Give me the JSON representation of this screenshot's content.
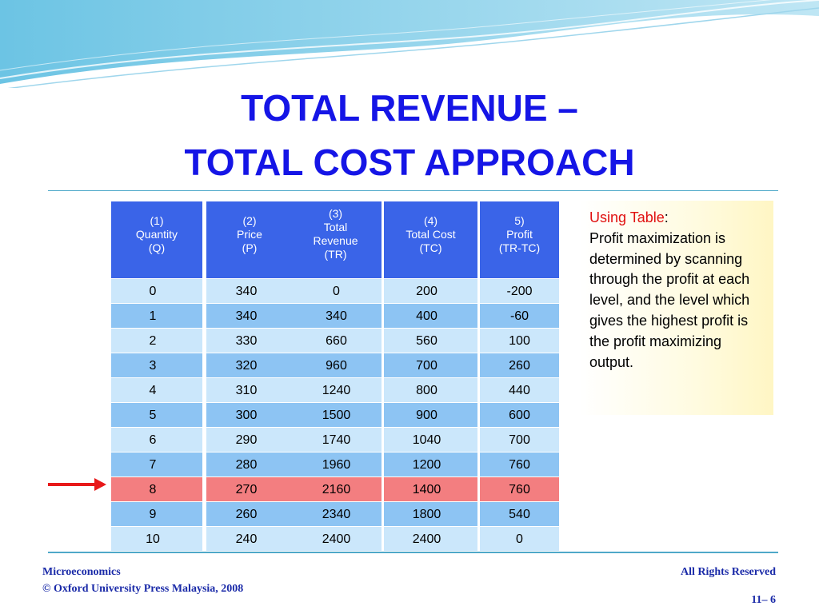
{
  "slide": {
    "title_line1": "TOTAL REVENUE –",
    "title_line2": "TOTAL COST APPROACH"
  },
  "table": {
    "headers": [
      [
        "(1)",
        "Quantity",
        "(Q)"
      ],
      [
        "(2)",
        "Price",
        "(P)"
      ],
      [
        "(3)",
        "Total",
        "Revenue",
        "(TR)"
      ],
      [
        "(4)",
        "Total Cost",
        "(TC)"
      ],
      [
        "5)",
        "Profit",
        "(TR-TC)"
      ]
    ],
    "columns": [
      [
        "0",
        "1",
        "2",
        "3",
        "4",
        "5",
        "6",
        "7",
        "8",
        "9",
        "10"
      ],
      [
        "340",
        "340",
        "330",
        "320",
        "310",
        "300",
        "290",
        "280",
        "270",
        "260",
        "240"
      ],
      [
        "0",
        "340",
        "660",
        "960",
        "1240",
        "1500",
        "1740",
        "1960",
        "2160",
        "2340",
        "2400"
      ],
      [
        "200",
        "400",
        "560",
        "700",
        "800",
        "900",
        "1040",
        "1200",
        "1400",
        "1800",
        "2400"
      ],
      [
        "-200",
        "-60",
        "100",
        "260",
        "440",
        "600",
        "700",
        "760",
        "760",
        "540",
        "0"
      ]
    ],
    "highlighted_row_index": 8,
    "colors": {
      "header": "#3a64e8",
      "row_light": "#cbe7fb",
      "row_mid": "#8dc4f3",
      "row_highlight": "#f37e80"
    }
  },
  "note": {
    "title": "Using Table",
    "colon": ":",
    "body": "Profit maximization is determined by scanning through the profit at each level, and the level which gives the highest profit is the profit maximizing output."
  },
  "indicator": {
    "icon": "red-arrow-right-icon",
    "color": "#e8191a"
  },
  "footer": {
    "left_line1": "Microeconomics",
    "left_line2": "© Oxford University Press Malaysia, 2008",
    "right_line1": "All Rights Reserved",
    "page": "11– 6"
  },
  "theme": {
    "title_color": "#1515e6",
    "footer_color": "#1a2aa8",
    "accent_line": "#4fa9c9"
  }
}
